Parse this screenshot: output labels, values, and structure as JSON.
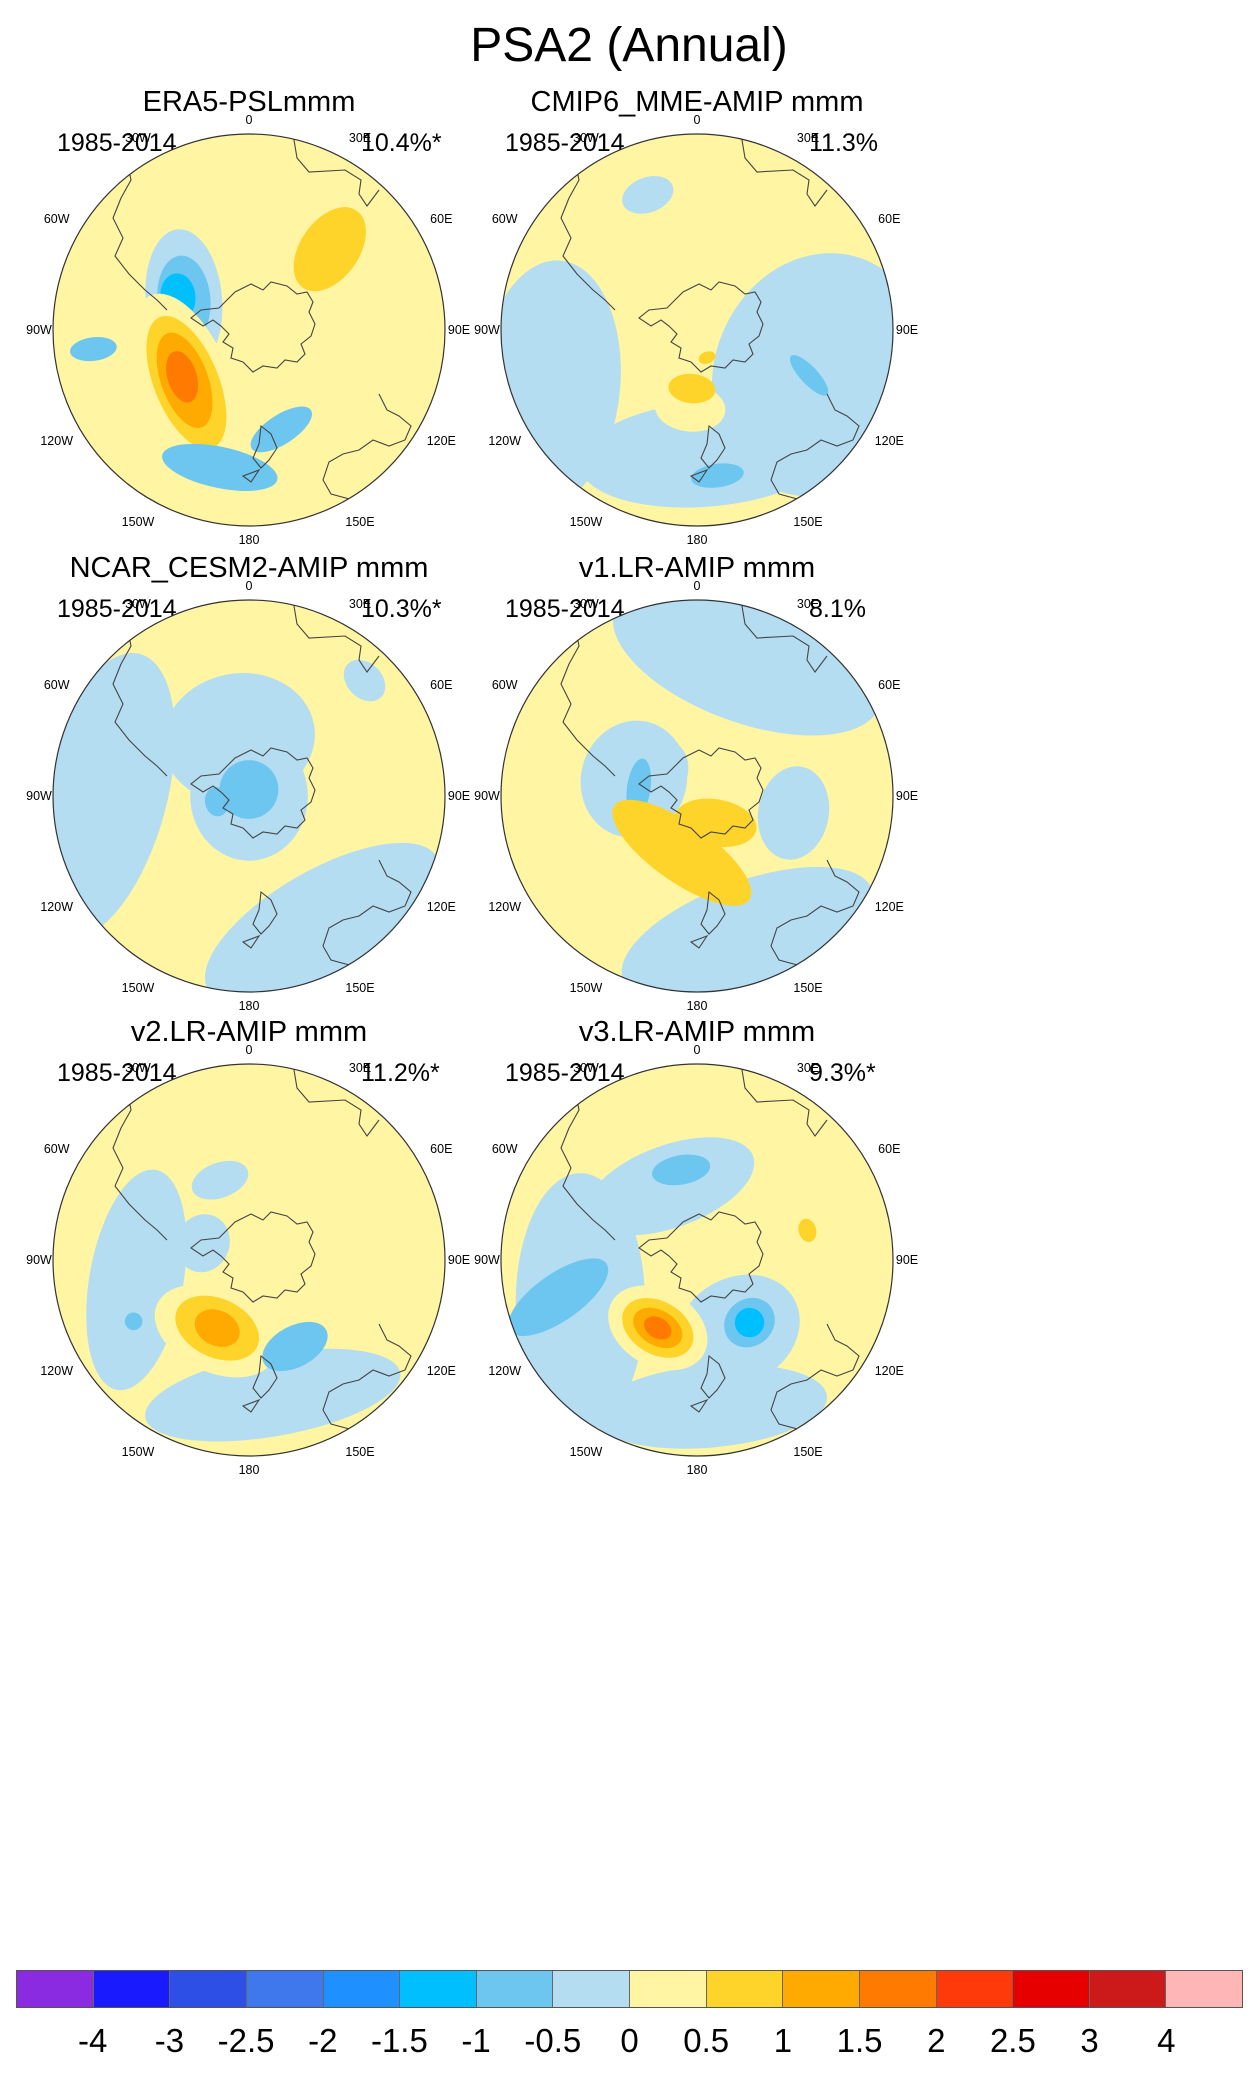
{
  "figure": {
    "title": "PSA2 (Annual)"
  },
  "chart_data": {
    "type": "heatmap",
    "projection": "south-polar-stereographic",
    "title": "PSA2 (Annual)",
    "colorbar": {
      "labels": [
        "-4",
        "-3",
        "-2.5",
        "-2",
        "-1.5",
        "-1",
        "-0.5",
        "0",
        "0.5",
        "1",
        "1.5",
        "2",
        "2.5",
        "3",
        "4"
      ],
      "colors": [
        "#8a2be2",
        "#1a1aff",
        "#2e4fe6",
        "#3f78ec",
        "#1e90ff",
        "#00bfff",
        "#6cc6f0",
        "#b4ddf2",
        "#fff5a3",
        "#ffd42a",
        "#ffaa00",
        "#ff7a00",
        "#ff3a0a",
        "#e60000",
        "#cc1a1a",
        "#ffb6b6"
      ]
    },
    "longitude_labels": [
      "0",
      "30E",
      "60E",
      "90E",
      "120E",
      "150E",
      "180",
      "150W",
      "120W",
      "90W",
      "60W",
      "30W"
    ],
    "panels": [
      {
        "title": "ERA5-PSLmmm",
        "period": "1985-2014",
        "variance": "10.4%*",
        "features": [
          {
            "lon": 60,
            "colat": 26,
            "rx": 17,
            "ry": 10,
            "rot": 10,
            "level": 0.5
          },
          {
            "lon": 95,
            "colat": 58,
            "rx": 38,
            "ry": 15,
            "rot": -20,
            "level": 0.5
          },
          {
            "lon": 45,
            "colat": 35,
            "rx": 16,
            "ry": 10,
            "rot": 80,
            "level": 1
          },
          {
            "lon": -65,
            "colat": 22,
            "rx": 24,
            "ry": 13,
            "rot": -30,
            "level": -0.5
          },
          {
            "lon": -65,
            "colat": 22,
            "rx": 15,
            "ry": 9,
            "rot": -30,
            "level": -1
          },
          {
            "lon": -65,
            "colat": 24,
            "rx": 8,
            "ry": 6,
            "rot": -30,
            "level": -1.5
          },
          {
            "lon": -130,
            "colat": 25,
            "rx": 32,
            "ry": 15,
            "rot": 18,
            "level": 0.5
          },
          {
            "lon": -130,
            "colat": 25,
            "rx": 24,
            "ry": 11,
            "rot": 18,
            "level": 1
          },
          {
            "lon": -128,
            "colat": 25,
            "rx": 17,
            "ry": 8,
            "rot": 18,
            "level": 1.5
          },
          {
            "lon": -125,
            "colat": 25,
            "rx": 9,
            "ry": 5,
            "rot": 18,
            "level": 2
          },
          {
            "lon": -168,
            "colat": 43,
            "rx": 20,
            "ry": 7,
            "rot": 0,
            "level": -1
          },
          {
            "lon": 162,
            "colat": 32,
            "rx": 12,
            "ry": 5,
            "rot": -15,
            "level": -1
          },
          {
            "lon": -97,
            "colat": 48,
            "rx": 4,
            "ry": 8,
            "rot": 0,
            "level": -1
          }
        ]
      },
      {
        "title": "CMIP6_MME-AMIP  mmm",
        "period": "1985-2014",
        "variance": "11.3%",
        "features": [
          {
            "lon": -20,
            "colat": 44,
            "rx": 9,
            "ry": 6,
            "rot": 0,
            "level": -0.5
          },
          {
            "lon": 110,
            "colat": 40,
            "rx": 42,
            "ry": 36,
            "rot": 0,
            "level": -0.5
          },
          {
            "lon": -110,
            "colat": 48,
            "rx": 42,
            "ry": 24,
            "rot": 25,
            "level": -0.5
          },
          {
            "lon": 175,
            "colat": 38,
            "rx": 44,
            "ry": 18,
            "rot": 0,
            "level": -0.5
          },
          {
            "lon": -175,
            "colat": 24,
            "rx": 12,
            "ry": 8,
            "rot": 0,
            "level": 0.5
          },
          {
            "lon": -175,
            "colat": 18,
            "rx": 8,
            "ry": 5,
            "rot": 0,
            "level": 1
          },
          {
            "lon": 160,
            "colat": 9,
            "rx": 3,
            "ry": 2,
            "rot": 0,
            "level": 1
          },
          {
            "lon": 112,
            "colat": 37,
            "rx": 3,
            "ry": 9,
            "rot": 25,
            "level": -1
          },
          {
            "lon": 172,
            "colat": 45,
            "rx": 9,
            "ry": 4,
            "rot": 0,
            "level": -1
          }
        ]
      },
      {
        "title": "NCAR_CESM2-AMIP  mmm",
        "period": "1985-2014",
        "variance": "10.3%*",
        "features": [
          {
            "lon": -10,
            "colat": 18,
            "rx": 26,
            "ry": 22,
            "rot": 0,
            "level": -0.5
          },
          {
            "lon": 0,
            "colat": 0,
            "rx": 20,
            "ry": 22,
            "rot": 0,
            "level": -0.5
          },
          {
            "lon": -90,
            "colat": 45,
            "rx": 50,
            "ry": 22,
            "rot": 15,
            "level": -0.5
          },
          {
            "lon": 150,
            "colat": 45,
            "rx": 45,
            "ry": 18,
            "rot": 0,
            "level": -0.5
          },
          {
            "lon": 45,
            "colat": 50,
            "rx": 8,
            "ry": 6,
            "rot": 0,
            "level": -0.5
          },
          {
            "lon": 0,
            "colat": 2,
            "rx": 10,
            "ry": 10,
            "rot": 0,
            "level": -1
          },
          {
            "lon": -100,
            "colat": 10,
            "rx": 5,
            "ry": 4,
            "rot": 0,
            "level": -1
          }
        ]
      },
      {
        "title": "v1.LR-AMIP  mmm",
        "period": "1985-2014",
        "variance": "8.1%",
        "features": [
          {
            "lon": 20,
            "colat": 45,
            "rx": 48,
            "ry": 22,
            "rot": 0,
            "level": -0.5
          },
          {
            "lon": -75,
            "colat": 20,
            "rx": 20,
            "ry": 18,
            "rot": 0,
            "level": -0.5
          },
          {
            "lon": -60,
            "colat": 14,
            "rx": 12,
            "ry": 10,
            "rot": 0,
            "level": -0.5
          },
          {
            "lon": 160,
            "colat": 45,
            "rx": 45,
            "ry": 18,
            "rot": 0,
            "level": -0.5
          },
          {
            "lon": 100,
            "colat": 30,
            "rx": 16,
            "ry": 12,
            "rot": 0,
            "level": -0.5
          },
          {
            "lon": -82,
            "colat": 18,
            "rx": 10,
            "ry": 4,
            "rot": 0,
            "level": -1
          },
          {
            "lon": -165,
            "colat": 18,
            "rx": 28,
            "ry": 10,
            "rot": 20,
            "level": 1
          },
          {
            "lon": 145,
            "colat": 10,
            "rx": 14,
            "ry": 8,
            "rot": 45,
            "level": 1
          }
        ]
      },
      {
        "title": "v2.LR-AMIP  mmm",
        "period": "1985-2014",
        "variance": "11.2%*",
        "features": [
          {
            "lon": -20,
            "colat": 26,
            "rx": 10,
            "ry": 6,
            "rot": 0,
            "level": -0.5
          },
          {
            "lon": -70,
            "colat": 15,
            "rx": 10,
            "ry": 9,
            "rot": 0,
            "level": -0.5
          },
          {
            "lon": -100,
            "colat": 35,
            "rx": 38,
            "ry": 16,
            "rot": 20,
            "level": -0.5
          },
          {
            "lon": 170,
            "colat": 42,
            "rx": 44,
            "ry": 14,
            "rot": 0,
            "level": -0.5
          },
          {
            "lon": -155,
            "colat": 24,
            "rx": 22,
            "ry": 14,
            "rot": 0,
            "level": 0.5
          },
          {
            "lon": -155,
            "colat": 23,
            "rx": 15,
            "ry": 10,
            "rot": 0,
            "level": 1
          },
          {
            "lon": -155,
            "colat": 23,
            "rx": 8,
            "ry": 6,
            "rot": 0,
            "level": 1.5
          },
          {
            "lon": 152,
            "colat": 30,
            "rx": 12,
            "ry": 7,
            "rot": 0,
            "level": -1
          },
          {
            "lon": -118,
            "colat": 40,
            "rx": 3,
            "ry": 3,
            "rot": 0,
            "level": -1
          }
        ]
      },
      {
        "title": "v3.LR-AMIP  mmm",
        "period": "1985-2014",
        "variance": "9.3%*",
        "features": [
          {
            "lon": -20,
            "colat": 24,
            "rx": 30,
            "ry": 14,
            "rot": 0,
            "level": -0.5
          },
          {
            "lon": -110,
            "colat": 38,
            "rx": 44,
            "ry": 22,
            "rot": 20,
            "level": -0.5
          },
          {
            "lon": 150,
            "colat": 25,
            "rx": 22,
            "ry": 18,
            "rot": 0,
            "level": -0.5
          },
          {
            "lon": 175,
            "colat": 45,
            "rx": 40,
            "ry": 14,
            "rot": 0,
            "level": -0.5
          },
          {
            "lon": -105,
            "colat": 44,
            "rx": 20,
            "ry": 8,
            "rot": 70,
            "level": -1
          },
          {
            "lon": -10,
            "colat": 28,
            "rx": 10,
            "ry": 5,
            "rot": 0,
            "level": -1
          },
          {
            "lon": 140,
            "colat": 25,
            "rx": 9,
            "ry": 8,
            "rot": 0,
            "level": -1
          },
          {
            "lon": 140,
            "colat": 25,
            "rx": 5,
            "ry": 5,
            "rot": 0,
            "level": -1.5
          },
          {
            "lon": -150,
            "colat": 24,
            "rx": 18,
            "ry": 13,
            "rot": 0,
            "level": 0.5
          },
          {
            "lon": -150,
            "colat": 24,
            "rx": 13,
            "ry": 9,
            "rot": 0,
            "level": 1
          },
          {
            "lon": -150,
            "colat": 24,
            "rx": 9,
            "ry": 6,
            "rot": 0,
            "level": 1.5
          },
          {
            "lon": -150,
            "colat": 24,
            "rx": 5,
            "ry": 3.5,
            "rot": 0,
            "level": 2
          },
          {
            "lon": 75,
            "colat": 35,
            "rx": 4,
            "ry": 3,
            "rot": 0,
            "level": 1
          }
        ]
      }
    ]
  }
}
